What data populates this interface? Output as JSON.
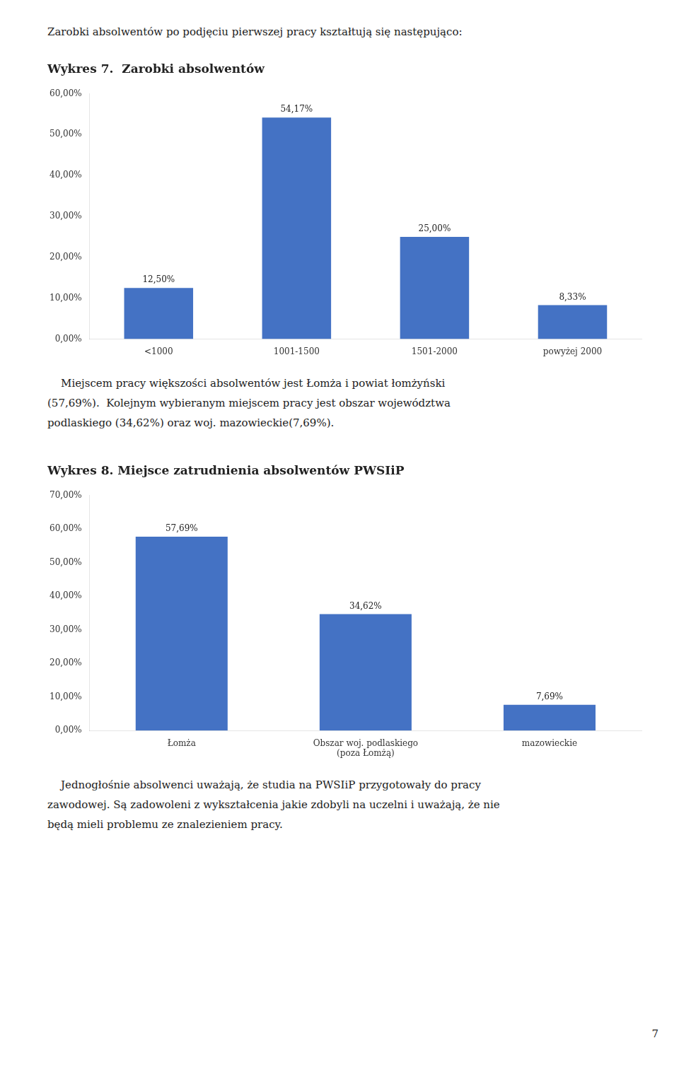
{
  "title": "Zarobki absolwentów po podjęciu pierwszej pracy kształtują się następująco:",
  "chart_data": [
    {
      "type": "bar",
      "title": "Wykres 7.  Zarobki absolwentów",
      "categories": [
        "<1000",
        "1001-1500",
        "1501-2000",
        "powyżej 2000"
      ],
      "values": [
        12.5,
        54.17,
        25.0,
        8.33
      ],
      "value_labels": [
        "12,50%",
        "54,17%",
        "25,00%",
        "8,33%"
      ],
      "data_labels": true,
      "color": "#4472C4",
      "ylim": [
        0,
        60
      ],
      "yticks": [
        {
          "value": 0,
          "label": "0,00%"
        },
        {
          "value": 10,
          "label": "10,00%"
        },
        {
          "value": 20,
          "label": "20,00%"
        },
        {
          "value": 30,
          "label": "30,00%"
        },
        {
          "value": 40,
          "label": "40,00%"
        },
        {
          "value": 50,
          "label": "50,00%"
        },
        {
          "value": 60,
          "label": "60,00%"
        }
      ],
      "grid": false,
      "annotations": [
        "    Miejscem pracy większości absolwentów jest Łomża i powiat łomżyński",
        "(57,69%).  Kolejnym wybieranym miejscem pracy jest obszar województwa",
        "podlaskiego (34,62%) oraz woj. mazowieckie(7,69%)."
      ]
    },
    {
      "type": "bar",
      "title": "Wykres 8. Miejsce zatrudnienia absolwentów PWSIiP",
      "categories": [
        "Łomża",
        "Obszar woj. podlaskiego\n(poza Łomżą)",
        "mazowieckie"
      ],
      "values": [
        57.69,
        34.62,
        7.69
      ],
      "value_labels": [
        "57,69%",
        "34,62%",
        "7,69%"
      ],
      "data_labels": true,
      "color": "#4472C4",
      "ylim": [
        0,
        70
      ],
      "yticks": [
        {
          "value": 0,
          "label": "0,00%"
        },
        {
          "value": 10,
          "label": "10,00%"
        },
        {
          "value": 20,
          "label": "20,00%"
        },
        {
          "value": 30,
          "label": "30,00%"
        },
        {
          "value": 40,
          "label": "40,00%"
        },
        {
          "value": 50,
          "label": "50,00%"
        },
        {
          "value": 60,
          "label": "60,00%"
        },
        {
          "value": 70,
          "label": "70,00%"
        }
      ],
      "grid": false,
      "annotations": [
        "    Jednogłośnie absolwenci uważają, że studia na PWSIiP przygotowały do pracy",
        "zawodowej. Są zadowoleni z wykształcenia jakie zdobyli na uczelni i uważają, że nie",
        "będą mieli problemu ze znalezieniem pracy."
      ]
    }
  ],
  "annotations": [
    "7"
  ]
}
